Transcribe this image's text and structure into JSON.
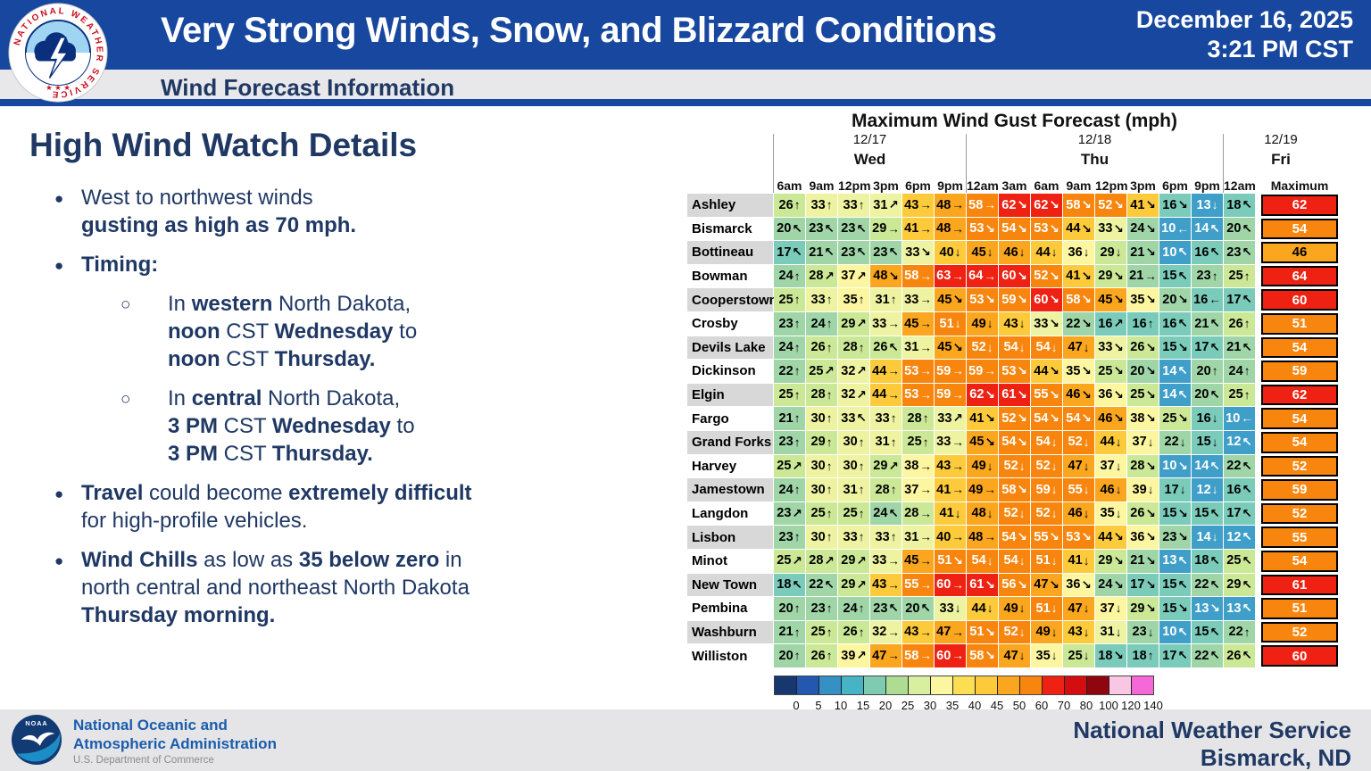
{
  "header": {
    "title": "Very Strong Winds, Snow, and Blizzard Conditions",
    "subtitle": "Wind Forecast Information",
    "date": "December 16, 2025",
    "time": "3:21 PM CST"
  },
  "details": {
    "heading": "High Wind Watch Details",
    "bullets": [
      {
        "level": 1,
        "runs": [
          [
            "West to northwest winds\n",
            0
          ],
          [
            "gusting as high as 70 mph.",
            1
          ]
        ]
      },
      {
        "level": 1,
        "runs": [
          [
            "Timing:",
            1
          ]
        ]
      },
      {
        "level": 2,
        "runs": [
          [
            "In ",
            0
          ],
          [
            "western",
            1
          ],
          [
            " North Dakota,\n",
            0
          ],
          [
            "noon",
            1
          ],
          [
            " CST ",
            0
          ],
          [
            "Wednesday",
            1
          ],
          [
            " to\n",
            0
          ],
          [
            "noon",
            1
          ],
          [
            " CST ",
            0
          ],
          [
            "Thursday.",
            1
          ]
        ]
      },
      {
        "level": 2,
        "runs": [
          [
            "In ",
            0
          ],
          [
            "central",
            1
          ],
          [
            " North Dakota,\n",
            0
          ],
          [
            "3 PM",
            1
          ],
          [
            " CST ",
            0
          ],
          [
            "Wednesday",
            1
          ],
          [
            " to\n",
            0
          ],
          [
            "3 PM",
            1
          ],
          [
            " CST ",
            0
          ],
          [
            "Thursday.",
            1
          ]
        ]
      },
      {
        "level": 1,
        "runs": [
          [
            "Travel",
            1
          ],
          [
            " could become ",
            0
          ],
          [
            "extremely difficult",
            1
          ],
          [
            "\nfor high-profile vehicles.",
            0
          ]
        ]
      },
      {
        "level": 1,
        "runs": [
          [
            "Wind Chills",
            1
          ],
          [
            " as low as ",
            0
          ],
          [
            "35 below zero",
            1
          ],
          [
            " in\nnorth central and northeast North Dakota\n",
            0
          ],
          [
            "Thursday morning.",
            1
          ]
        ]
      }
    ]
  },
  "chart_data": {
    "type": "heatmap",
    "title": "Maximum Wind Gust Forecast (mph)",
    "unit": "mph",
    "day_groups": [
      {
        "date": "12/17",
        "day": "Wed",
        "span": 6
      },
      {
        "date": "12/18",
        "day": "Thu",
        "span": 8
      },
      {
        "date": "12/19",
        "day": "Fri",
        "span": 1
      }
    ],
    "columns": [
      "6am",
      "9am",
      "12pm",
      "3pm",
      "6pm",
      "9pm",
      "12am",
      "3am",
      "6am",
      "9am",
      "12pm",
      "3pm",
      "6pm",
      "9pm",
      "12am"
    ],
    "max_column_label": "Maximum",
    "rows": [
      {
        "city": "Ashley",
        "gusts": [
          26,
          33,
          33,
          31,
          43,
          48,
          58,
          62,
          62,
          58,
          52,
          41,
          16,
          13,
          18
        ],
        "dirs": [
          "N",
          "N",
          "N",
          "NE",
          "E",
          "E",
          "E",
          "SE",
          "SE",
          "SE",
          "SE",
          "SE",
          "SE",
          "S",
          "NW"
        ],
        "max": 62
      },
      {
        "city": "Bismarck",
        "gusts": [
          20,
          23,
          23,
          29,
          41,
          48,
          53,
          54,
          53,
          44,
          33,
          24,
          10,
          14,
          20
        ],
        "dirs": [
          "NW",
          "NW",
          "NW",
          "E",
          "E",
          "E",
          "SE",
          "SE",
          "SE",
          "SE",
          "SE",
          "SE",
          "W",
          "NW",
          "NW"
        ],
        "max": 54
      },
      {
        "city": "Bottineau",
        "gusts": [
          17,
          21,
          23,
          23,
          33,
          40,
          45,
          46,
          44,
          36,
          29,
          21,
          10,
          16,
          23
        ],
        "dirs": [
          "NW",
          "NW",
          "NW",
          "NW",
          "SE",
          "S",
          "S",
          "S",
          "S",
          "S",
          "S",
          "SE",
          "NW",
          "NW",
          "NW"
        ],
        "max": 46
      },
      {
        "city": "Bowman",
        "gusts": [
          24,
          28,
          37,
          48,
          58,
          63,
          64,
          60,
          52,
          41,
          29,
          21,
          15,
          23,
          25
        ],
        "dirs": [
          "N",
          "NE",
          "NE",
          "SE",
          "E",
          "E",
          "E",
          "SE",
          "SE",
          "SE",
          "SE",
          "E",
          "NW",
          "N",
          "N"
        ],
        "max": 64
      },
      {
        "city": "Cooperstown",
        "gusts": [
          25,
          33,
          35,
          31,
          33,
          45,
          53,
          59,
          60,
          58,
          45,
          35,
          20,
          16,
          17
        ],
        "dirs": [
          "N",
          "N",
          "N",
          "N",
          "E",
          "SE",
          "SE",
          "SE",
          "SE",
          "SE",
          "SE",
          "SE",
          "SE",
          "W",
          "NW"
        ],
        "max": 60
      },
      {
        "city": "Crosby",
        "gusts": [
          23,
          24,
          29,
          33,
          45,
          51,
          49,
          43,
          33,
          22,
          16,
          16,
          16,
          21,
          26
        ],
        "dirs": [
          "N",
          "N",
          "NE",
          "E",
          "E",
          "S",
          "S",
          "S",
          "SE",
          "SE",
          "NE",
          "N",
          "NW",
          "NW",
          "N"
        ],
        "max": 51
      },
      {
        "city": "Devils Lake",
        "gusts": [
          24,
          26,
          28,
          26,
          31,
          45,
          52,
          54,
          54,
          47,
          33,
          26,
          15,
          17,
          21
        ],
        "dirs": [
          "N",
          "N",
          "N",
          "NW",
          "E",
          "SE",
          "S",
          "S",
          "S",
          "S",
          "SE",
          "SE",
          "SE",
          "NW",
          "NW"
        ],
        "max": 54
      },
      {
        "city": "Dickinson",
        "gusts": [
          22,
          25,
          32,
          44,
          53,
          59,
          59,
          53,
          44,
          35,
          25,
          20,
          14,
          20,
          24
        ],
        "dirs": [
          "N",
          "NE",
          "NE",
          "E",
          "E",
          "E",
          "E",
          "SE",
          "SE",
          "SE",
          "SE",
          "SE",
          "NW",
          "N",
          "N"
        ],
        "max": 59
      },
      {
        "city": "Elgin",
        "gusts": [
          25,
          28,
          32,
          44,
          53,
          59,
          62,
          61,
          55,
          46,
          36,
          25,
          14,
          20,
          25
        ],
        "dirs": [
          "N",
          "N",
          "NE",
          "E",
          "E",
          "E",
          "SE",
          "SE",
          "SE",
          "SE",
          "SE",
          "SE",
          "NW",
          "NW",
          "N"
        ],
        "max": 62
      },
      {
        "city": "Fargo",
        "gusts": [
          21,
          30,
          33,
          33,
          28,
          33,
          41,
          52,
          54,
          54,
          46,
          38,
          25,
          16,
          10
        ],
        "dirs": [
          "N",
          "N",
          "NW",
          "N",
          "N",
          "NE",
          "SE",
          "SE",
          "SE",
          "SE",
          "SE",
          "SE",
          "SE",
          "S",
          "W"
        ],
        "max": 54
      },
      {
        "city": "Grand Forks",
        "gusts": [
          23,
          29,
          30,
          31,
          25,
          33,
          45,
          54,
          54,
          52,
          44,
          37,
          22,
          15,
          12
        ],
        "dirs": [
          "N",
          "N",
          "N",
          "N",
          "N",
          "E",
          "SE",
          "SE",
          "S",
          "S",
          "S",
          "S",
          "S",
          "S",
          "NW"
        ],
        "max": 54
      },
      {
        "city": "Harvey",
        "gusts": [
          25,
          30,
          30,
          29,
          38,
          43,
          49,
          52,
          52,
          47,
          37,
          28,
          10,
          14,
          22
        ],
        "dirs": [
          "NE",
          "N",
          "N",
          "NE",
          "E",
          "E",
          "S",
          "S",
          "S",
          "S",
          "S",
          "SE",
          "SE",
          "NW",
          "NW"
        ],
        "max": 52
      },
      {
        "city": "Jamestown",
        "gusts": [
          24,
          30,
          31,
          28,
          37,
          41,
          49,
          58,
          59,
          55,
          46,
          39,
          17,
          12,
          16
        ],
        "dirs": [
          "N",
          "N",
          "N",
          "N",
          "E",
          "E",
          "E",
          "SE",
          "S",
          "S",
          "S",
          "S",
          "S",
          "S",
          "NW"
        ],
        "max": 59
      },
      {
        "city": "Langdon",
        "gusts": [
          23,
          25,
          25,
          24,
          28,
          41,
          48,
          52,
          52,
          46,
          35,
          26,
          15,
          15,
          17
        ],
        "dirs": [
          "NE",
          "N",
          "N",
          "NW",
          "E",
          "S",
          "S",
          "S",
          "S",
          "S",
          "S",
          "SE",
          "SE",
          "NW",
          "NW"
        ],
        "max": 52
      },
      {
        "city": "Lisbon",
        "gusts": [
          23,
          30,
          33,
          33,
          31,
          40,
          48,
          54,
          55,
          53,
          44,
          36,
          23,
          14,
          12
        ],
        "dirs": [
          "N",
          "N",
          "N",
          "N",
          "E",
          "E",
          "E",
          "SE",
          "SE",
          "SE",
          "SE",
          "SE",
          "SE",
          "S",
          "NW"
        ],
        "max": 55
      },
      {
        "city": "Minot",
        "gusts": [
          25,
          28,
          29,
          33,
          45,
          51,
          54,
          54,
          51,
          41,
          29,
          21,
          13,
          18,
          25
        ],
        "dirs": [
          "NE",
          "NE",
          "NE",
          "E",
          "E",
          "SE",
          "S",
          "S",
          "S",
          "S",
          "SE",
          "SE",
          "NW",
          "NW",
          "NW"
        ],
        "max": 54
      },
      {
        "city": "New Town",
        "gusts": [
          18,
          22,
          29,
          43,
          55,
          60,
          61,
          56,
          47,
          36,
          24,
          17,
          15,
          22,
          29
        ],
        "dirs": [
          "NW",
          "NW",
          "NE",
          "E",
          "E",
          "E",
          "SE",
          "SE",
          "SE",
          "SE",
          "SE",
          "SE",
          "NW",
          "NW",
          "NW"
        ],
        "max": 61
      },
      {
        "city": "Pembina",
        "gusts": [
          20,
          23,
          24,
          23,
          20,
          33,
          44,
          49,
          51,
          47,
          37,
          29,
          15,
          13,
          13
        ],
        "dirs": [
          "N",
          "N",
          "N",
          "NW",
          "NW",
          "S",
          "S",
          "S",
          "S",
          "S",
          "S",
          "SE",
          "SE",
          "SE",
          "NW"
        ],
        "max": 51
      },
      {
        "city": "Washburn",
        "gusts": [
          21,
          25,
          26,
          32,
          43,
          47,
          51,
          52,
          49,
          43,
          31,
          23,
          10,
          15,
          22
        ],
        "dirs": [
          "N",
          "N",
          "N",
          "E",
          "E",
          "E",
          "SE",
          "S",
          "S",
          "S",
          "S",
          "S",
          "NW",
          "NW",
          "N"
        ],
        "max": 52
      },
      {
        "city": "Williston",
        "gusts": [
          20,
          26,
          39,
          47,
          58,
          60,
          58,
          47,
          35,
          25,
          18,
          18,
          17,
          22,
          26
        ],
        "dirs": [
          "N",
          "N",
          "NE",
          "E",
          "E",
          "E",
          "SE",
          "S",
          "S",
          "S",
          "SE",
          "N",
          "NW",
          "NW",
          "NW"
        ],
        "max": 60
      }
    ],
    "value_colors": [
      {
        "min": 60,
        "bg": "#ee2113",
        "fg": "#ffffff"
      },
      {
        "min": 50,
        "bg": "#f8860e",
        "fg": "#ffffff"
      },
      {
        "min": 45,
        "bg": "#faa61f",
        "fg": "#000000"
      },
      {
        "min": 40,
        "bg": "#fcca3a",
        "fg": "#000000"
      },
      {
        "min": 35,
        "bg": "#fdf6a0",
        "fg": "#000000"
      },
      {
        "min": 30,
        "bg": "#edf3a1",
        "fg": "#000000"
      },
      {
        "min": 25,
        "bg": "#cbe897",
        "fg": "#000000"
      },
      {
        "min": 20,
        "bg": "#a0d5a8",
        "fg": "#000000"
      },
      {
        "min": 15,
        "bg": "#7bcbbb",
        "fg": "#000000"
      },
      {
        "min": 10,
        "bg": "#3f9fc9",
        "fg": "#ffffff"
      },
      {
        "min": 5,
        "bg": "#2b62b5",
        "fg": "#ffffff"
      },
      {
        "min": 0,
        "bg": "#16386e",
        "fg": "#ffffff"
      }
    ],
    "legend": {
      "ticks": [
        "0",
        "5",
        "10",
        "15",
        "20",
        "25",
        "30",
        "35",
        "40",
        "45",
        "50",
        "60",
        "70",
        "80",
        "100",
        "120",
        "140"
      ],
      "colors": [
        "#16386e",
        "#2458b0",
        "#3590c6",
        "#45b4c4",
        "#7fcbb2",
        "#aedc92",
        "#d8efa0",
        "#fdf6a0",
        "#fcde52",
        "#fcca3a",
        "#faa61f",
        "#f8860e",
        "#ee2113",
        "#d40d10",
        "#8f060f",
        "#f9c7e4",
        "#f468d8"
      ]
    }
  },
  "footer": {
    "noaa_line1": "National Oceanic and",
    "noaa_line2": "Atmospheric Administration",
    "dept": "U.S. Department of Commerce",
    "nws_line1": "National Weather Service",
    "nws_line2": "Bismarck, ND"
  },
  "colors": {
    "header_blue": "#17479e",
    "navy_text": "#1f3864",
    "band_gray": "#e8e8ea",
    "footer_gray": "#e5e5e7",
    "noaa_blue": "#1a5dad"
  }
}
